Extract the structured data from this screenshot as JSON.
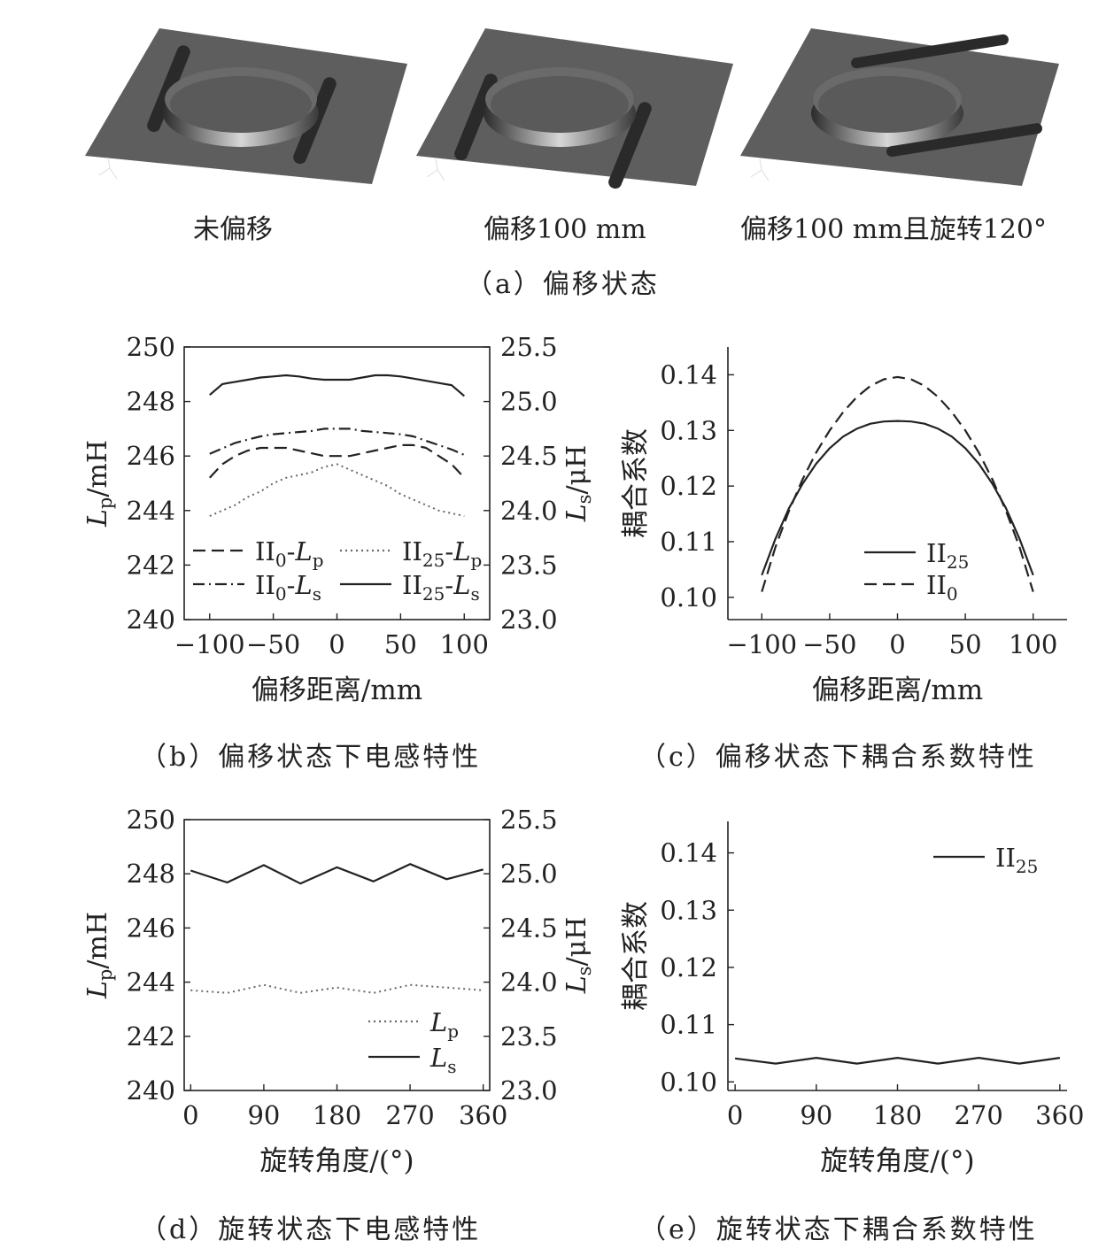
{
  "panel_a": {
    "labels": [
      "未偏移",
      "偏移100 mm",
      "偏移100 mm且旋转120°"
    ],
    "caption": "（a）偏移状态"
  },
  "captions": {
    "b": "（b）偏移状态下电感特性",
    "c": "（c）偏移状态下耦合系数特性",
    "d": "（d）旋转状态下电感特性",
    "e": "（e）旋转状态下耦合系数特性"
  },
  "chart_data": [
    {
      "id": "b",
      "type": "line",
      "xlabel": "偏移距离/mm",
      "ylabel_left": "Lp/mH",
      "ylabel_right": "Ls/μH",
      "xlim": [
        -120,
        120
      ],
      "ylim_left": [
        240,
        250
      ],
      "ylim_right": [
        23.0,
        25.5
      ],
      "xticks": [
        "−100",
        "−50",
        "0",
        "50",
        "100"
      ],
      "xtick_values": [
        -100,
        -50,
        0,
        50,
        100
      ],
      "yticks_left": [
        "240",
        "242",
        "244",
        "246",
        "248",
        "250"
      ],
      "yticks_right": [
        "23.0",
        "23.5",
        "24.0",
        "24.5",
        "25.0",
        "25.5"
      ],
      "series": [
        {
          "name": "II0-Lp",
          "axis": "left",
          "style": "dashed",
          "x": [
            -100,
            -90,
            -80,
            -70,
            -60,
            -50,
            -40,
            -30,
            -20,
            -10,
            0,
            10,
            20,
            30,
            40,
            50,
            60,
            70,
            80,
            90,
            100
          ],
          "y": [
            245.2,
            245.7,
            246.0,
            246.2,
            246.3,
            246.3,
            246.3,
            246.2,
            246.1,
            246.0,
            246.0,
            246.0,
            246.1,
            246.2,
            246.3,
            246.4,
            246.4,
            246.3,
            246.0,
            245.7,
            245.2
          ]
        },
        {
          "name": "II0-Ls",
          "axis": "right",
          "style": "dashdot",
          "x": [
            -100,
            -90,
            -80,
            -70,
            -60,
            -50,
            -40,
            -30,
            -20,
            -10,
            0,
            10,
            20,
            30,
            40,
            50,
            60,
            70,
            80,
            90,
            100
          ],
          "y": [
            24.52,
            24.57,
            24.62,
            24.65,
            24.68,
            24.7,
            24.71,
            24.72,
            24.73,
            24.75,
            24.75,
            24.75,
            24.73,
            24.72,
            24.71,
            24.7,
            24.68,
            24.64,
            24.6,
            24.56,
            24.51
          ]
        },
        {
          "name": "II25-Lp",
          "axis": "left",
          "style": "dotted",
          "x": [
            -100,
            -90,
            -80,
            -70,
            -60,
            -50,
            -40,
            -30,
            -20,
            -10,
            0,
            10,
            20,
            30,
            40,
            50,
            60,
            70,
            80,
            90,
            100
          ],
          "y": [
            243.8,
            244.0,
            244.2,
            244.5,
            244.7,
            245.0,
            245.2,
            245.3,
            245.4,
            245.6,
            245.7,
            245.5,
            245.3,
            245.1,
            244.9,
            244.6,
            244.4,
            244.2,
            244.0,
            243.9,
            243.8
          ]
        },
        {
          "name": "II25-Ls",
          "axis": "right",
          "style": "solid",
          "x": [
            -100,
            -90,
            -80,
            -70,
            -60,
            -50,
            -40,
            -30,
            -20,
            -10,
            0,
            10,
            20,
            30,
            40,
            50,
            60,
            70,
            80,
            90,
            100
          ],
          "y": [
            25.06,
            25.16,
            25.18,
            25.2,
            25.22,
            25.23,
            25.24,
            25.23,
            25.21,
            25.2,
            25.2,
            25.2,
            25.22,
            25.24,
            25.24,
            25.23,
            25.21,
            25.19,
            25.17,
            25.15,
            25.05
          ]
        }
      ],
      "legend": [
        {
          "sym": "II",
          "sub": "0",
          "mid": "-",
          "var": "L",
          "vsub": "p"
        },
        {
          "sym": "II",
          "sub": "25",
          "mid": "-",
          "var": "L",
          "vsub": "p"
        },
        {
          "sym": "II",
          "sub": "0",
          "mid": "-",
          "var": "L",
          "vsub": "s"
        },
        {
          "sym": "II",
          "sub": "25",
          "mid": "-",
          "var": "L",
          "vsub": "s"
        }
      ]
    },
    {
      "id": "c",
      "type": "line",
      "xlabel": "偏移距离/mm",
      "ylabel": "耦合系数",
      "xlim": [
        -125,
        125
      ],
      "ylim": [
        0.096,
        0.145
      ],
      "xticks": [
        "−100",
        "−50",
        "0",
        "50",
        "100"
      ],
      "xtick_values": [
        -100,
        -50,
        0,
        50,
        100
      ],
      "yticks": [
        "0.10",
        "0.11",
        "0.12",
        "0.13",
        "0.14"
      ],
      "ytick_values": [
        0.1,
        0.11,
        0.12,
        0.13,
        0.14
      ],
      "series": [
        {
          "name": "II25",
          "style": "solid",
          "x": [
            -100,
            -90,
            -80,
            -70,
            -60,
            -50,
            -40,
            -30,
            -20,
            -10,
            0,
            10,
            20,
            30,
            40,
            50,
            60,
            70,
            80,
            90,
            100
          ],
          "y": [
            0.104,
            0.1105,
            0.116,
            0.1204,
            0.124,
            0.1268,
            0.1289,
            0.1303,
            0.1312,
            0.1316,
            0.1317,
            0.1316,
            0.1312,
            0.1303,
            0.1289,
            0.1268,
            0.124,
            0.1204,
            0.116,
            0.1105,
            0.104
          ]
        },
        {
          "name": "II0",
          "style": "dashed",
          "x": [
            -100,
            -90,
            -80,
            -70,
            -60,
            -50,
            -40,
            -30,
            -20,
            -10,
            0,
            10,
            20,
            30,
            40,
            50,
            60,
            70,
            80,
            90,
            100
          ],
          "y": [
            0.101,
            0.109,
            0.1155,
            0.1212,
            0.126,
            0.13,
            0.1333,
            0.136,
            0.138,
            0.1392,
            0.1396,
            0.1392,
            0.138,
            0.136,
            0.1333,
            0.13,
            0.126,
            0.1212,
            0.1155,
            0.109,
            0.101
          ]
        }
      ],
      "legend": [
        {
          "sym": "II",
          "sub": "25"
        },
        {
          "sym": "II",
          "sub": "0"
        }
      ]
    },
    {
      "id": "d",
      "type": "line",
      "xlabel": "旋转角度/(°)",
      "ylabel_left": "Lp/mH",
      "ylabel_right": "Ls/μH",
      "xlim": [
        -8,
        368
      ],
      "ylim_left": [
        240,
        250
      ],
      "ylim_right": [
        23.0,
        25.5
      ],
      "xticks": [
        "0",
        "90",
        "180",
        "270",
        "360"
      ],
      "xtick_values": [
        0,
        90,
        180,
        270,
        360
      ],
      "yticks_left": [
        "240",
        "242",
        "244",
        "246",
        "248",
        "250"
      ],
      "yticks_right": [
        "23.0",
        "23.5",
        "24.0",
        "24.5",
        "25.0",
        "25.5"
      ],
      "series": [
        {
          "name": "Lp",
          "axis": "left",
          "style": "dotted",
          "x": [
            0,
            45,
            90,
            135,
            180,
            225,
            270,
            315,
            360
          ],
          "y": [
            243.7,
            243.6,
            243.9,
            243.6,
            243.8,
            243.6,
            243.9,
            243.8,
            243.7
          ]
        },
        {
          "name": "Ls",
          "axis": "right",
          "style": "solid",
          "x": [
            0,
            45,
            90,
            135,
            180,
            225,
            270,
            315,
            360
          ],
          "y": [
            25.03,
            24.92,
            25.08,
            24.91,
            25.06,
            24.93,
            25.09,
            24.95,
            25.04
          ]
        }
      ],
      "legend": [
        {
          "var": "L",
          "vsub": "p"
        },
        {
          "var": "L",
          "vsub": "s"
        }
      ]
    },
    {
      "id": "e",
      "type": "line",
      "xlabel": "旋转角度/(°)",
      "ylabel": "耦合系数",
      "xlim": [
        -8,
        368
      ],
      "ylim": [
        0.0985,
        0.1455
      ],
      "xticks": [
        "0",
        "90",
        "180",
        "270",
        "360"
      ],
      "xtick_values": [
        0,
        90,
        180,
        270,
        360
      ],
      "yticks": [
        "0.10",
        "0.11",
        "0.12",
        "0.13",
        "0.14"
      ],
      "ytick_values": [
        0.1,
        0.11,
        0.12,
        0.13,
        0.14
      ],
      "series": [
        {
          "name": "II25",
          "style": "solid",
          "x": [
            0,
            45,
            90,
            135,
            180,
            225,
            270,
            315,
            360
          ],
          "y": [
            0.1041,
            0.1032,
            0.1042,
            0.1032,
            0.1042,
            0.1032,
            0.1042,
            0.1032,
            0.1042
          ]
        }
      ],
      "legend": [
        {
          "sym": "II",
          "sub": "25"
        }
      ]
    }
  ]
}
